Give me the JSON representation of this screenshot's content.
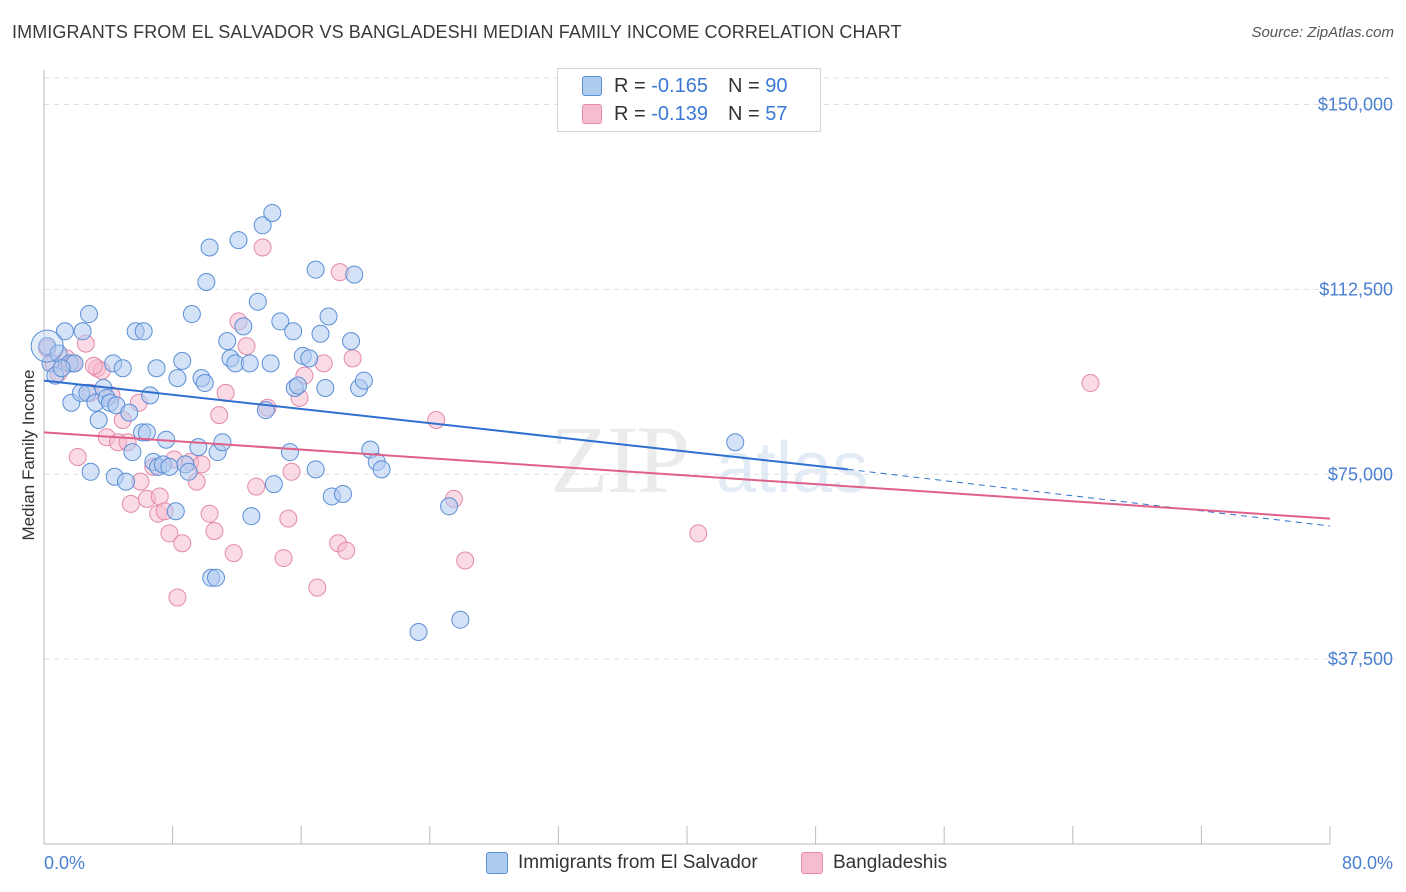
{
  "title": "IMMIGRANTS FROM EL SALVADOR VS BANGLADESHI MEDIAN FAMILY INCOME CORRELATION CHART",
  "source": "Source: ZipAtlas.com",
  "legend": {
    "rows": [
      {
        "r_label": "R = ",
        "r_value": "-0.165",
        "n_label": "N = ",
        "n_value": "90"
      },
      {
        "r_label": "R = ",
        "r_value": "-0.139",
        "n_label": "N = ",
        "n_value": "57"
      }
    ]
  },
  "bottom_legend": {
    "series1": "Immigrants from El Salvador",
    "series2": "Bangladeshis"
  },
  "colors": {
    "blue_fill": "#aecbf0",
    "blue_stroke": "#5b8fd6",
    "blue_line": "#2f6fd0",
    "pink_fill": "#f6bcd0",
    "pink_stroke": "#e48aa8",
    "pink_line": "#e0608a",
    "tick_text": "#4a7fd0",
    "grid": "#dddddd"
  },
  "chart_data": {
    "type": "scatter",
    "title": "IMMIGRANTS FROM EL SALVADOR VS BANGLADESHI MEDIAN FAMILY INCOME CORRELATION CHART",
    "xlabel": "",
    "ylabel": "Median Family Income",
    "xlim": [
      0,
      80
    ],
    "ylim": [
      0,
      157000
    ],
    "x_tick_labels": [
      "0.0%",
      "80.0%"
    ],
    "y_ticks": [
      37500,
      75000,
      112500,
      150000
    ],
    "y_tick_labels": [
      "$37,500",
      "$75,000",
      "$112,500",
      "$150,000"
    ],
    "grid": true,
    "legend_position": "top-center",
    "watermark": "ZIPatlas",
    "series": [
      {
        "name": "Immigrants from El Salvador",
        "color": "#5b8fd6",
        "trend": {
          "x": [
            0,
            50
          ],
          "y": [
            94000,
            76000
          ],
          "dashed_extension_to": [
            80,
            64500
          ]
        },
        "points": [
          [
            0.2,
            101000
          ],
          [
            0.4,
            97500
          ],
          [
            0.7,
            95000
          ],
          [
            0.9,
            99500
          ],
          [
            1.3,
            104000
          ],
          [
            1.6,
            97500
          ],
          [
            1.7,
            89500
          ],
          [
            1.9,
            97500
          ],
          [
            2.3,
            91500
          ],
          [
            2.4,
            104000
          ],
          [
            2.7,
            91500
          ],
          [
            2.8,
            107500
          ],
          [
            2.9,
            75500
          ],
          [
            3.2,
            89500
          ],
          [
            3.4,
            86000
          ],
          [
            3.7,
            92500
          ],
          [
            3.9,
            90500
          ],
          [
            4.1,
            89500
          ],
          [
            4.3,
            97500
          ],
          [
            4.4,
            74500
          ],
          [
            4.5,
            89000
          ],
          [
            4.9,
            96500
          ],
          [
            5.1,
            73500
          ],
          [
            5.3,
            87500
          ],
          [
            5.5,
            79500
          ],
          [
            5.7,
            104000
          ],
          [
            6.1,
            83500
          ],
          [
            6.2,
            104000
          ],
          [
            6.4,
            83500
          ],
          [
            6.8,
            77500
          ],
          [
            7.0,
            96500
          ],
          [
            7.1,
            76500
          ],
          [
            7.4,
            77000
          ],
          [
            7.6,
            82000
          ],
          [
            7.8,
            76500
          ],
          [
            8.2,
            67500
          ],
          [
            8.3,
            94500
          ],
          [
            8.6,
            98000
          ],
          [
            8.8,
            77000
          ],
          [
            9.0,
            75500
          ],
          [
            9.2,
            107500
          ],
          [
            9.6,
            80500
          ],
          [
            9.8,
            94500
          ],
          [
            10.0,
            93500
          ],
          [
            10.1,
            114000
          ],
          [
            10.3,
            121000
          ],
          [
            10.4,
            54000
          ],
          [
            10.7,
            54000
          ],
          [
            10.8,
            79500
          ],
          [
            11.1,
            81500
          ],
          [
            11.4,
            102000
          ],
          [
            11.6,
            98500
          ],
          [
            11.9,
            97500
          ],
          [
            12.1,
            122500
          ],
          [
            12.4,
            105000
          ],
          [
            12.8,
            97500
          ],
          [
            12.9,
            66500
          ],
          [
            13.3,
            110000
          ],
          [
            13.6,
            125500
          ],
          [
            13.8,
            88000
          ],
          [
            14.1,
            97500
          ],
          [
            14.2,
            128000
          ],
          [
            14.3,
            73000
          ],
          [
            14.7,
            106000
          ],
          [
            15.3,
            79500
          ],
          [
            15.5,
            104000
          ],
          [
            15.6,
            92500
          ],
          [
            15.8,
            93000
          ],
          [
            16.1,
            99000
          ],
          [
            16.5,
            98500
          ],
          [
            16.9,
            76000
          ],
          [
            16.9,
            116500
          ],
          [
            17.2,
            103500
          ],
          [
            17.5,
            92500
          ],
          [
            17.7,
            107000
          ],
          [
            17.9,
            70500
          ],
          [
            18.6,
            71000
          ],
          [
            19.1,
            102000
          ],
          [
            19.3,
            115500
          ],
          [
            19.6,
            92500
          ],
          [
            19.9,
            94000
          ],
          [
            20.3,
            80000
          ],
          [
            20.7,
            77500
          ],
          [
            21.0,
            76000
          ],
          [
            23.3,
            43000
          ],
          [
            25.2,
            68500
          ],
          [
            25.9,
            45500
          ],
          [
            43.0,
            81500
          ],
          [
            1.1,
            96500
          ],
          [
            6.6,
            91000
          ]
        ]
      },
      {
        "name": "Bangladeshis",
        "color": "#e48aa8",
        "trend": {
          "x": [
            0,
            80
          ],
          "y": [
            83500,
            66000
          ]
        },
        "points": [
          [
            0.2,
            100500
          ],
          [
            0.6,
            97500
          ],
          [
            1.4,
            98500
          ],
          [
            1.8,
            97500
          ],
          [
            2.1,
            78500
          ],
          [
            2.6,
            101500
          ],
          [
            2.9,
            91500
          ],
          [
            3.3,
            96500
          ],
          [
            3.6,
            96000
          ],
          [
            3.9,
            82500
          ],
          [
            4.2,
            91000
          ],
          [
            4.6,
            81500
          ],
          [
            4.9,
            86000
          ],
          [
            5.2,
            81500
          ],
          [
            5.4,
            69000
          ],
          [
            5.9,
            89500
          ],
          [
            6.0,
            73500
          ],
          [
            6.4,
            70000
          ],
          [
            6.8,
            76500
          ],
          [
            7.1,
            67000
          ],
          [
            7.2,
            70500
          ],
          [
            7.5,
            67500
          ],
          [
            7.8,
            63000
          ],
          [
            8.1,
            78000
          ],
          [
            8.3,
            50000
          ],
          [
            8.6,
            61000
          ],
          [
            9.1,
            77500
          ],
          [
            9.5,
            73500
          ],
          [
            9.8,
            77000
          ],
          [
            10.3,
            67000
          ],
          [
            10.6,
            63500
          ],
          [
            10.9,
            87000
          ],
          [
            11.3,
            91500
          ],
          [
            11.8,
            59000
          ],
          [
            12.1,
            106000
          ],
          [
            12.6,
            101000
          ],
          [
            13.2,
            72500
          ],
          [
            13.6,
            121000
          ],
          [
            13.9,
            88500
          ],
          [
            14.9,
            58000
          ],
          [
            15.2,
            66000
          ],
          [
            15.4,
            75500
          ],
          [
            15.9,
            90500
          ],
          [
            16.2,
            95000
          ],
          [
            17.0,
            52000
          ],
          [
            17.4,
            97500
          ],
          [
            18.3,
            61000
          ],
          [
            18.4,
            116000
          ],
          [
            18.8,
            59500
          ],
          [
            19.2,
            98500
          ],
          [
            24.4,
            86000
          ],
          [
            25.5,
            70000
          ],
          [
            26.2,
            57500
          ],
          [
            40.7,
            63000
          ],
          [
            65.1,
            93500
          ],
          [
            0.9,
            95500
          ],
          [
            3.1,
            97000
          ]
        ]
      }
    ]
  }
}
